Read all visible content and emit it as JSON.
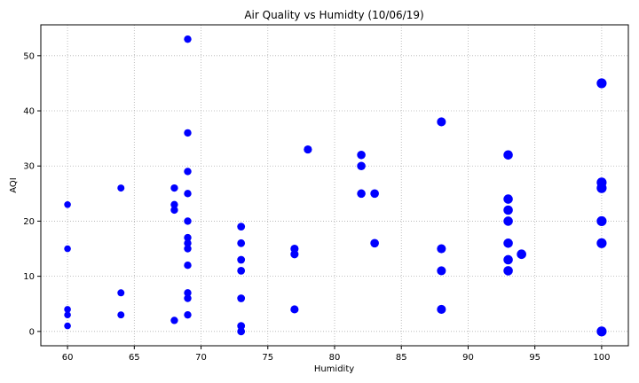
{
  "chart_data": {
    "type": "scatter",
    "title": "Air Quality vs Humidty (10/06/19)",
    "xlabel": "Humidity",
    "ylabel": "AQI",
    "xlim": [
      58,
      102
    ],
    "ylim": [
      -2.6,
      55.6
    ],
    "xticks": [
      60,
      65,
      70,
      75,
      80,
      85,
      90,
      95,
      100
    ],
    "yticks": [
      0,
      10,
      20,
      30,
      40,
      50
    ],
    "grid": true,
    "marker_color": "#0000ff",
    "points": [
      {
        "x": 60,
        "y": 23
      },
      {
        "x": 60,
        "y": 15
      },
      {
        "x": 60,
        "y": 4
      },
      {
        "x": 60,
        "y": 3
      },
      {
        "x": 60,
        "y": 1
      },
      {
        "x": 64,
        "y": 26
      },
      {
        "x": 64,
        "y": 7
      },
      {
        "x": 64,
        "y": 3
      },
      {
        "x": 68,
        "y": 26
      },
      {
        "x": 68,
        "y": 23
      },
      {
        "x": 68,
        "y": 22
      },
      {
        "x": 68,
        "y": 2
      },
      {
        "x": 69,
        "y": 53
      },
      {
        "x": 69,
        "y": 36
      },
      {
        "x": 69,
        "y": 29
      },
      {
        "x": 69,
        "y": 25
      },
      {
        "x": 69,
        "y": 20
      },
      {
        "x": 69,
        "y": 17
      },
      {
        "x": 69,
        "y": 16
      },
      {
        "x": 69,
        "y": 15
      },
      {
        "x": 69,
        "y": 12
      },
      {
        "x": 69,
        "y": 7
      },
      {
        "x": 69,
        "y": 6
      },
      {
        "x": 69,
        "y": 3
      },
      {
        "x": 73,
        "y": 19
      },
      {
        "x": 73,
        "y": 16
      },
      {
        "x": 73,
        "y": 13
      },
      {
        "x": 73,
        "y": 11
      },
      {
        "x": 73,
        "y": 6
      },
      {
        "x": 73,
        "y": 1
      },
      {
        "x": 73,
        "y": 0
      },
      {
        "x": 77,
        "y": 15
      },
      {
        "x": 77,
        "y": 14
      },
      {
        "x": 77,
        "y": 4
      },
      {
        "x": 78,
        "y": 33
      },
      {
        "x": 82,
        "y": 32
      },
      {
        "x": 82,
        "y": 30
      },
      {
        "x": 82,
        "y": 25
      },
      {
        "x": 83,
        "y": 25
      },
      {
        "x": 83,
        "y": 16
      },
      {
        "x": 88,
        "y": 38
      },
      {
        "x": 88,
        "y": 15
      },
      {
        "x": 88,
        "y": 11
      },
      {
        "x": 88,
        "y": 4
      },
      {
        "x": 93,
        "y": 32
      },
      {
        "x": 93,
        "y": 24
      },
      {
        "x": 93,
        "y": 22
      },
      {
        "x": 93,
        "y": 20
      },
      {
        "x": 93,
        "y": 16
      },
      {
        "x": 93,
        "y": 13
      },
      {
        "x": 93,
        "y": 11
      },
      {
        "x": 94,
        "y": 14
      },
      {
        "x": 100,
        "y": 45
      },
      {
        "x": 100,
        "y": 27
      },
      {
        "x": 100,
        "y": 26
      },
      {
        "x": 100,
        "y": 20
      },
      {
        "x": 100,
        "y": 16
      },
      {
        "x": 100,
        "y": 0
      }
    ]
  }
}
